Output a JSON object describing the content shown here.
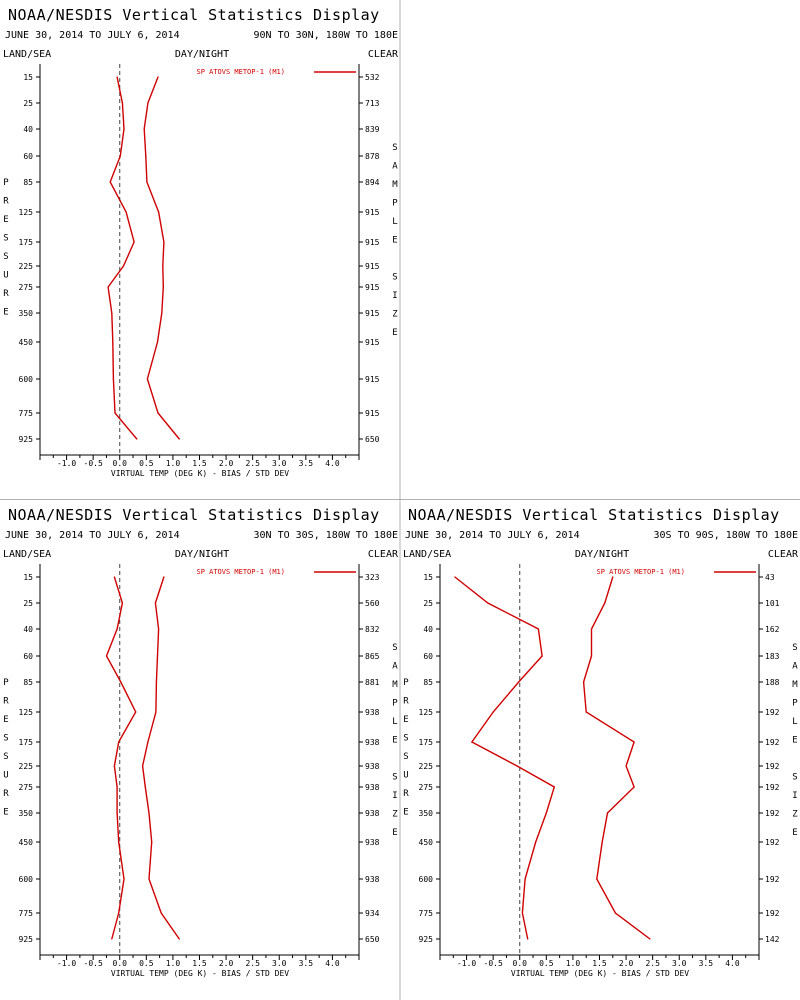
{
  "colors": {
    "line": "#d00000",
    "axis": "#000000",
    "divider": "#b0b0b0",
    "zero": "#444444"
  },
  "side_labels": {
    "left": "PRESSURE",
    "right": "SAMPLE SIZE"
  },
  "header": {
    "land_sea": "LAND/SEA",
    "day_night": "DAY/NIGHT",
    "clear": "CLEAR"
  },
  "chart_data": [
    {
      "type": "line",
      "title": "NOAA/NESDIS Vertical Statistics Display",
      "date_range": "JUNE 30, 2014 TO JULY 6, 2014",
      "region": "90N TO 30N, 180W TO 180E",
      "xlabel": "VIRTUAL TEMP (DEG K) - BIAS / STD DEV",
      "xlim": [
        -1.5,
        4.5
      ],
      "xticks": [
        "-1.0",
        "-0.5",
        "0.0",
        "0.5",
        "1.0",
        "1.5",
        "2.0",
        "2.5",
        "3.0",
        "3.5",
        "4.0"
      ],
      "ylabel": "PRESSURE",
      "pressure_levels": [
        "15",
        "25",
        "40",
        "60",
        "85",
        "125",
        "175",
        "225",
        "275",
        "350",
        "450",
        "600",
        "775",
        "925"
      ],
      "sample_sizes": [
        "532",
        "713",
        "839",
        "878",
        "894",
        "915",
        "915",
        "915",
        "915",
        "915",
        "915",
        "915",
        "915",
        "650"
      ],
      "legend": "SP ATOVS METOP-1 (M1)",
      "series": [
        {
          "kind": "bias",
          "values": [
            -0.05,
            0.05,
            0.08,
            0.01,
            -0.18,
            0.12,
            0.27,
            0.07,
            -0.22,
            -0.15,
            -0.13,
            -0.12,
            -0.09,
            0.32
          ]
        },
        {
          "kind": "std_dev",
          "values": [
            0.72,
            0.53,
            0.46,
            0.49,
            0.51,
            0.73,
            0.83,
            0.81,
            0.82,
            0.79,
            0.71,
            0.52,
            0.72,
            1.12
          ]
        }
      ]
    },
    {
      "type": "line",
      "title": "NOAA/NESDIS Vertical Statistics Display",
      "date_range": "JUNE 30, 2014 TO JULY 6, 2014",
      "region": "30N TO 30S, 180W TO 180E",
      "xlabel": "VIRTUAL TEMP (DEG K) - BIAS / STD DEV",
      "xlim": [
        -1.5,
        4.5
      ],
      "xticks": [
        "-1.0",
        "-0.5",
        "0.0",
        "0.5",
        "1.0",
        "1.5",
        "2.0",
        "2.5",
        "3.0",
        "3.5",
        "4.0"
      ],
      "ylabel": "PRESSURE",
      "pressure_levels": [
        "15",
        "25",
        "40",
        "60",
        "85",
        "125",
        "175",
        "225",
        "275",
        "350",
        "450",
        "600",
        "775",
        "925"
      ],
      "sample_sizes": [
        "323",
        "560",
        "832",
        "865",
        "881",
        "938",
        "938",
        "938",
        "938",
        "938",
        "938",
        "938",
        "934",
        "650"
      ],
      "legend": "SP ATOVS METOP-1 (M1)",
      "series": [
        {
          "kind": "bias",
          "values": [
            -0.1,
            0.05,
            -0.05,
            -0.25,
            0.02,
            0.3,
            -0.02,
            -0.1,
            -0.05,
            -0.05,
            -0.02,
            0.08,
            -0.02,
            -0.15
          ]
        },
        {
          "kind": "std_dev",
          "values": [
            0.83,
            0.67,
            0.73,
            0.71,
            0.69,
            0.68,
            0.53,
            0.43,
            0.48,
            0.55,
            0.6,
            0.55,
            0.78,
            1.12
          ]
        }
      ]
    },
    {
      "type": "line",
      "title": "NOAA/NESDIS Vertical Statistics Display",
      "date_range": "JUNE 30, 2014 TO JULY 6, 2014",
      "region": "30S TO 90S, 180W TO 180E",
      "xlabel": "VIRTUAL TEMP (DEG K) - BIAS / STD DEV",
      "xlim": [
        -1.5,
        4.5
      ],
      "xticks": [
        "-1.0",
        "-0.5",
        "0.0",
        "0.5",
        "1.0",
        "1.5",
        "2.0",
        "2.5",
        "3.0",
        "3.5",
        "4.0"
      ],
      "ylabel": "PRESSURE",
      "pressure_levels": [
        "15",
        "25",
        "40",
        "60",
        "85",
        "125",
        "175",
        "225",
        "275",
        "350",
        "450",
        "600",
        "775",
        "925"
      ],
      "sample_sizes": [
        "43",
        "101",
        "162",
        "183",
        "188",
        "192",
        "192",
        "192",
        "192",
        "192",
        "192",
        "192",
        "192",
        "142"
      ],
      "legend": "SP ATOVS METOP-1 (M1)",
      "series": [
        {
          "kind": "bias",
          "values": [
            -1.22,
            -0.6,
            0.35,
            0.42,
            -0.02,
            -0.5,
            -0.9,
            -0.05,
            0.65,
            0.5,
            0.3,
            0.1,
            0.05,
            0.15
          ]
        },
        {
          "kind": "std_dev",
          "values": [
            1.75,
            1.6,
            1.35,
            1.35,
            1.2,
            1.25,
            2.15,
            2.0,
            2.15,
            1.65,
            1.55,
            1.45,
            1.8,
            2.45
          ]
        }
      ]
    }
  ]
}
